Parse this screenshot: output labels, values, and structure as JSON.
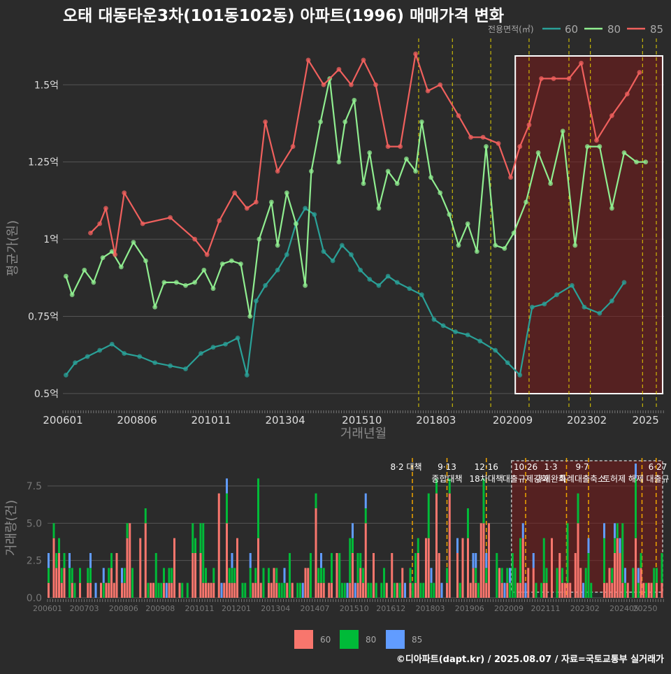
{
  "title": "오태 대동타운3차(101동102동) 아파트(1996) 매매가격 변화",
  "legend_top": {
    "title": "전용면적(㎡)",
    "items": [
      {
        "label": "60",
        "color": "#2aa198"
      },
      {
        "label": "80",
        "color": "#90ee90"
      },
      {
        "label": "85",
        "color": "#f0605d"
      }
    ]
  },
  "legend_bottom": {
    "items": [
      {
        "label": "60",
        "color": "#f8766d"
      },
      {
        "label": "80",
        "color": "#00ba38"
      },
      {
        "label": "85",
        "color": "#619cff"
      }
    ]
  },
  "caption": "©디아파트(dapt.kr) / 2025.08.07 / 자료=국토교통부 실거래가",
  "chart_data": [
    {
      "type": "line",
      "ylabel": "평균가(원)",
      "xlabel": "거래년월",
      "x_ticks": [
        "200601",
        "200806",
        "201011",
        "201304",
        "201510",
        "201803",
        "202009",
        "202302",
        "2025"
      ],
      "y_ticks": [
        "0.5억",
        "0.75억",
        "1억",
        "1.25억",
        "1.5억"
      ],
      "ylim": [
        0.45,
        1.65
      ],
      "xlim": [
        2006.0,
        2025.6
      ],
      "highlight_region": [
        2020.75,
        2025.6
      ],
      "policy_lines": [
        2017.6,
        2018.7,
        2019.95,
        2021.2,
        2022.5,
        2023.2,
        2024.9,
        2025.35
      ],
      "series": [
        {
          "name": "60",
          "color": "#2aa198",
          "x": [
            2006.1,
            2006.4,
            2006.8,
            2007.2,
            2007.6,
            2008.0,
            2008.5,
            2009.0,
            2009.5,
            2010.0,
            2010.5,
            2010.9,
            2011.3,
            2011.7,
            2012.0,
            2012.3,
            2012.6,
            2013.0,
            2013.3,
            2013.6,
            2013.9,
            2014.2,
            2014.5,
            2014.8,
            2015.1,
            2015.4,
            2015.7,
            2016.0,
            2016.3,
            2016.6,
            2016.9,
            2017.3,
            2017.7,
            2018.1,
            2018.4,
            2018.8,
            2019.2,
            2019.6,
            2020.1,
            2020.5,
            2020.9,
            2021.3,
            2021.7,
            2022.1,
            2022.6,
            2023.0,
            2023.5,
            2023.9,
            2024.3
          ],
          "y": [
            0.56,
            0.6,
            0.62,
            0.64,
            0.66,
            0.63,
            0.62,
            0.6,
            0.59,
            0.58,
            0.63,
            0.65,
            0.66,
            0.68,
            0.56,
            0.8,
            0.85,
            0.9,
            0.95,
            1.05,
            1.1,
            1.08,
            0.96,
            0.93,
            0.98,
            0.95,
            0.9,
            0.87,
            0.85,
            0.88,
            0.86,
            0.84,
            0.82,
            0.74,
            0.72,
            0.7,
            0.69,
            0.67,
            0.64,
            0.6,
            0.56,
            0.78,
            0.79,
            0.82,
            0.85,
            0.78,
            0.76,
            0.8,
            0.86
          ]
        },
        {
          "name": "80",
          "color": "#90ee90",
          "x": [
            2006.1,
            2006.3,
            2006.7,
            2007.0,
            2007.3,
            2007.6,
            2007.9,
            2008.3,
            2008.7,
            2009.0,
            2009.3,
            2009.7,
            2010.0,
            2010.3,
            2010.6,
            2010.9,
            2011.2,
            2011.5,
            2011.8,
            2012.1,
            2012.4,
            2012.8,
            2013.0,
            2013.3,
            2013.6,
            2013.9,
            2014.1,
            2014.4,
            2014.7,
            2015.0,
            2015.2,
            2015.5,
            2015.8,
            2016.0,
            2016.3,
            2016.6,
            2016.9,
            2017.2,
            2017.5,
            2017.7,
            2018.0,
            2018.3,
            2018.6,
            2018.9,
            2019.2,
            2019.5,
            2019.8,
            2020.1,
            2020.4,
            2020.7,
            2021.1,
            2021.5,
            2021.9,
            2022.3,
            2022.7,
            2023.1,
            2023.5,
            2023.9,
            2024.3,
            2024.7,
            2025.0
          ],
          "y": [
            0.88,
            0.82,
            0.9,
            0.86,
            0.94,
            0.96,
            0.91,
            0.99,
            0.93,
            0.78,
            0.86,
            0.86,
            0.85,
            0.86,
            0.9,
            0.84,
            0.92,
            0.93,
            0.92,
            0.75,
            1.0,
            1.12,
            0.98,
            1.15,
            1.05,
            0.85,
            1.22,
            1.38,
            1.52,
            1.25,
            1.38,
            1.45,
            1.18,
            1.28,
            1.1,
            1.22,
            1.18,
            1.26,
            1.22,
            1.38,
            1.2,
            1.15,
            1.08,
            0.98,
            1.05,
            0.96,
            1.3,
            0.98,
            0.97,
            1.02,
            1.12,
            1.28,
            1.18,
            1.35,
            0.98,
            1.3,
            1.3,
            1.1,
            1.28,
            1.25,
            1.25
          ]
        },
        {
          "name": "85",
          "color": "#f0605d",
          "x": [
            2006.9,
            2007.2,
            2007.4,
            2007.7,
            2008.0,
            2008.6,
            2009.5,
            2010.3,
            2010.7,
            2011.1,
            2011.6,
            2012.0,
            2012.3,
            2012.6,
            2013.0,
            2013.5,
            2014.0,
            2014.5,
            2015.0,
            2015.4,
            2015.8,
            2016.2,
            2016.6,
            2017.0,
            2017.5,
            2017.9,
            2018.3,
            2018.9,
            2019.3,
            2019.7,
            2020.2,
            2020.6,
            2020.9,
            2021.2,
            2021.6,
            2022.0,
            2022.5,
            2022.9,
            2023.4,
            2023.9,
            2024.4,
            2024.8
          ],
          "y": [
            1.02,
            1.05,
            1.1,
            0.95,
            1.15,
            1.05,
            1.07,
            1.0,
            0.95,
            1.06,
            1.15,
            1.1,
            1.12,
            1.38,
            1.22,
            1.3,
            1.58,
            1.5,
            1.55,
            1.5,
            1.58,
            1.5,
            1.3,
            1.3,
            1.6,
            1.48,
            1.5,
            1.4,
            1.33,
            1.33,
            1.31,
            1.2,
            1.3,
            1.37,
            1.52,
            1.52,
            1.52,
            1.57,
            1.32,
            1.4,
            1.47,
            1.54
          ]
        }
      ]
    },
    {
      "type": "bar",
      "ylabel": "거래량(건)",
      "x_ticks": [
        "200601",
        "200703",
        "200806",
        "200908",
        "201011",
        "201201",
        "201304",
        "201407",
        "201510",
        "201612",
        "201803",
        "201906",
        "202009",
        "202111",
        "202302",
        "202405",
        "20250"
      ],
      "y_ticks": [
        "0.0",
        "2.5",
        "5.0",
        "7.5"
      ],
      "ylim": [
        0,
        9
      ],
      "xlim": [
        2006.0,
        2025.6
      ],
      "highlight_region": [
        2020.75,
        2025.6
      ],
      "policy_lines": [
        2017.6,
        2018.7,
        2019.95,
        2021.2,
        2022.5,
        2023.2,
        2024.9,
        2025.35
      ],
      "annotations": [
        {
          "x": 2017.4,
          "lines": [
            "8·2 대책"
          ]
        },
        {
          "x": 2018.7,
          "lines": [
            "9·13",
            "종합대책"
          ]
        },
        {
          "x": 2019.95,
          "lines": [
            "12·16",
            "18차대책"
          ]
        },
        {
          "x": 2021.2,
          "lines": [
            "10·26",
            "대출규제강화"
          ]
        },
        {
          "x": 2022.0,
          "lines": [
            "1·3",
            "규제완화"
          ]
        },
        {
          "x": 2023.0,
          "lines": [
            "9·7",
            "특례대출축소"
          ]
        },
        {
          "x": 2024.3,
          "lines": [
            "",
            "토허제 해제"
          ]
        },
        {
          "x": 2025.4,
          "lines": [
            "6·27",
            "대출규"
          ]
        }
      ],
      "series": [
        {
          "name": "60",
          "color": "#f8766d"
        },
        {
          "name": "80",
          "color": "#00ba38"
        },
        {
          "name": "85",
          "color": "#619cff"
        }
      ]
    }
  ]
}
